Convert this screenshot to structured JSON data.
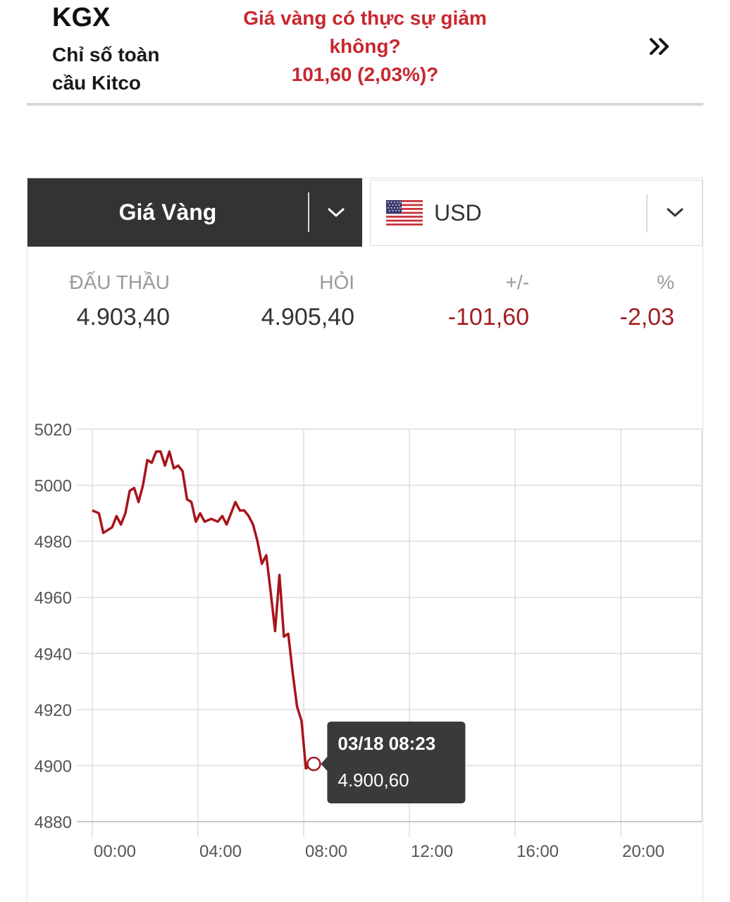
{
  "header": {
    "symbol": "KGX",
    "subtitle": "Chỉ số toàn cầu Kitco",
    "headline_line1": "Giá vàng có thực sự giảm",
    "headline_line2": "không?",
    "headline_line3": "101,60 (2,03%)?",
    "next_icon": "double-chevron-right-icon"
  },
  "selectors": {
    "metal": "Giá Vàng",
    "currency": "USD",
    "currency_flag": "us-flag-icon"
  },
  "quote": {
    "bid_label": "ĐẤU THẦU",
    "bid_value": "4.903,40",
    "ask_label": "HỎI",
    "ask_value": "4.905,40",
    "change_label": "+/-",
    "change_value": "-101,60",
    "pct_label": "%",
    "pct_value": "-2,03"
  },
  "colors": {
    "headline": "#c8272e",
    "negative": "#a01e24",
    "line": "#a8141c",
    "selector_dark": "#333333"
  },
  "chart_data": {
    "type": "line",
    "series": [
      {
        "values": [
          {
            "x": "00:00",
            "y": 4991
          },
          {
            "x": "00:15",
            "y": 4990
          },
          {
            "x": "00:25",
            "y": 4983
          },
          {
            "x": "00:35",
            "y": 4984
          },
          {
            "x": "00:45",
            "y": 4985
          },
          {
            "x": "00:55",
            "y": 4989
          },
          {
            "x": "01:05",
            "y": 4986
          },
          {
            "x": "01:15",
            "y": 4990
          },
          {
            "x": "01:25",
            "y": 4998
          },
          {
            "x": "01:35",
            "y": 4999
          },
          {
            "x": "01:45",
            "y": 4994
          },
          {
            "x": "01:55",
            "y": 5000
          },
          {
            "x": "02:05",
            "y": 5009
          },
          {
            "x": "02:15",
            "y": 5008
          },
          {
            "x": "02:25",
            "y": 5012
          },
          {
            "x": "02:35",
            "y": 5012
          },
          {
            "x": "02:45",
            "y": 5007
          },
          {
            "x": "02:55",
            "y": 5012
          },
          {
            "x": "03:05",
            "y": 5006
          },
          {
            "x": "03:15",
            "y": 5007
          },
          {
            "x": "03:25",
            "y": 5005
          },
          {
            "x": "03:35",
            "y": 4995
          },
          {
            "x": "03:45",
            "y": 4994
          },
          {
            "x": "03:55",
            "y": 4987
          },
          {
            "x": "04:05",
            "y": 4990
          },
          {
            "x": "04:15",
            "y": 4987
          },
          {
            "x": "04:30",
            "y": 4988
          },
          {
            "x": "04:45",
            "y": 4987
          },
          {
            "x": "04:55",
            "y": 4989
          },
          {
            "x": "05:05",
            "y": 4986
          },
          {
            "x": "05:15",
            "y": 4990
          },
          {
            "x": "05:25",
            "y": 4994
          },
          {
            "x": "05:35",
            "y": 4991
          },
          {
            "x": "05:45",
            "y": 4991
          },
          {
            "x": "05:55",
            "y": 4989
          },
          {
            "x": "06:05",
            "y": 4986
          },
          {
            "x": "06:15",
            "y": 4980
          },
          {
            "x": "06:25",
            "y": 4972
          },
          {
            "x": "06:35",
            "y": 4975
          },
          {
            "x": "06:45",
            "y": 4962
          },
          {
            "x": "06:55",
            "y": 4948
          },
          {
            "x": "07:05",
            "y": 4968
          },
          {
            "x": "07:15",
            "y": 4946
          },
          {
            "x": "07:25",
            "y": 4947
          },
          {
            "x": "07:35",
            "y": 4933
          },
          {
            "x": "07:45",
            "y": 4921
          },
          {
            "x": "07:55",
            "y": 4916
          },
          {
            "x": "08:05",
            "y": 4899
          },
          {
            "x": "08:23",
            "y": 4900.6
          }
        ]
      }
    ],
    "y_ticks": [
      "5020",
      "5000",
      "4980",
      "4960",
      "4940",
      "4920",
      "4900",
      "4880"
    ],
    "x_ticks": [
      "00:00",
      "04:00",
      "08:00",
      "12:00",
      "16:00",
      "20:00"
    ],
    "ylim": [
      4880,
      5020
    ],
    "xlim": [
      "00:00",
      "23:00"
    ],
    "grid": true,
    "tooltip": {
      "date": "03/18 08:23",
      "value": "4.900,60"
    }
  }
}
